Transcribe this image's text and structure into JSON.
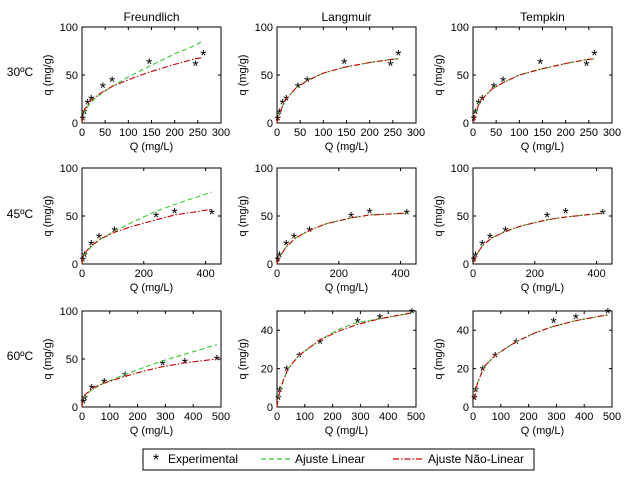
{
  "figure": {
    "row_labels": [
      "30ºC",
      "45ºC",
      "60ºC"
    ],
    "column_titles": [
      "Freundlich",
      "Langmuir",
      "Tempkin"
    ],
    "legend": {
      "experimental": "Experimental",
      "linear": "Ajuste Linear",
      "nonlinear": "Ajuste Não-Linear",
      "placement": "bottom-center"
    },
    "colors": {
      "experimental": "#000000",
      "linear": "#33cc33",
      "nonlinear": "#cc0000"
    }
  },
  "chart_data": [
    {
      "type": "line",
      "row": 0,
      "col": 0,
      "title": "Freundlich",
      "xlabel": "Q (mg/L)",
      "ylabel": "q (mg/g)",
      "xlim": [
        0,
        300
      ],
      "ylim": [
        0,
        100
      ],
      "xticks": [
        0,
        50,
        100,
        150,
        200,
        250,
        300
      ],
      "yticks": [
        0,
        50,
        100
      ],
      "series": [
        {
          "name": "Experimental",
          "style": "marker",
          "x": [
            2,
            5,
            12,
            20,
            45,
            65,
            145,
            245,
            262
          ],
          "y": [
            3,
            10,
            20,
            24,
            37,
            43,
            62,
            60,
            71
          ]
        },
        {
          "name": "Ajuste Linear",
          "style": "dashed",
          "x": [
            0,
            2,
            5,
            12,
            20,
            40,
            65,
            100,
            145,
            200,
            245,
            262
          ],
          "y": [
            0,
            7,
            11,
            17,
            22,
            30,
            38,
            48,
            59,
            72,
            81,
            86
          ]
        },
        {
          "name": "Ajuste Não-Linear",
          "style": "dashdot",
          "x": [
            0,
            2,
            5,
            12,
            20,
            40,
            65,
            100,
            145,
            200,
            245,
            262
          ],
          "y": [
            0,
            9,
            13,
            19,
            24,
            31,
            38,
            45,
            53,
            61,
            67,
            68
          ]
        }
      ]
    },
    {
      "type": "line",
      "row": 0,
      "col": 1,
      "title": "Langmuir",
      "xlabel": "Q (mg/L)",
      "ylabel": "q (mg/g)",
      "xlim": [
        0,
        300
      ],
      "ylim": [
        0,
        100
      ],
      "xticks": [
        0,
        50,
        100,
        150,
        200,
        250,
        300
      ],
      "yticks": [
        0,
        50,
        100
      ],
      "series": [
        {
          "name": "Experimental",
          "style": "marker",
          "x": [
            2,
            5,
            12,
            20,
            45,
            65,
            145,
            245,
            262
          ],
          "y": [
            3,
            10,
            20,
            24,
            37,
            43,
            62,
            60,
            71
          ]
        },
        {
          "name": "Ajuste Linear",
          "style": "dashed",
          "x": [
            0,
            2,
            5,
            12,
            20,
            40,
            65,
            100,
            145,
            200,
            245,
            262
          ],
          "y": [
            0,
            4,
            9,
            18,
            25,
            36,
            44,
            52,
            58,
            63,
            66,
            67
          ]
        },
        {
          "name": "Ajuste Não-Linear",
          "style": "dashdot",
          "x": [
            0,
            2,
            5,
            12,
            20,
            40,
            65,
            100,
            145,
            200,
            245,
            262
          ],
          "y": [
            0,
            4,
            9,
            18,
            25,
            36,
            44,
            52,
            58,
            63,
            66,
            67
          ]
        }
      ]
    },
    {
      "type": "line",
      "row": 0,
      "col": 2,
      "title": "Tempkin",
      "xlabel": "Q (mg/L)",
      "ylabel": "q (mg/g)",
      "xlim": [
        0,
        300
      ],
      "ylim": [
        0,
        100
      ],
      "xticks": [
        0,
        50,
        100,
        150,
        200,
        250,
        300
      ],
      "yticks": [
        0,
        50,
        100
      ],
      "series": [
        {
          "name": "Experimental",
          "style": "marker",
          "x": [
            2,
            5,
            12,
            20,
            45,
            65,
            145,
            245,
            262
          ],
          "y": [
            3,
            10,
            20,
            24,
            37,
            43,
            62,
            60,
            71
          ]
        },
        {
          "name": "Ajuste Linear",
          "style": "dashed",
          "x": [
            2,
            5,
            12,
            20,
            40,
            65,
            100,
            145,
            200,
            245,
            262
          ],
          "y": [
            2,
            9,
            19,
            25,
            35,
            42,
            50,
            56,
            62,
            66,
            67
          ]
        },
        {
          "name": "Ajuste Não-Linear",
          "style": "dashdot",
          "x": [
            2,
            5,
            12,
            20,
            40,
            65,
            100,
            145,
            200,
            245,
            262
          ],
          "y": [
            2,
            9,
            19,
            25,
            35,
            42,
            50,
            56,
            62,
            66,
            67
          ]
        }
      ]
    },
    {
      "type": "line",
      "row": 1,
      "col": 0,
      "title": "",
      "xlabel": "Q (mg/L)",
      "ylabel": "q (mg/g)",
      "xlim": [
        0,
        450
      ],
      "ylim": [
        0,
        100
      ],
      "xticks": [
        0,
        200,
        400
      ],
      "yticks": [
        0,
        50,
        100
      ],
      "series": [
        {
          "name": "Experimental",
          "style": "marker",
          "x": [
            3,
            8,
            30,
            55,
            105,
            240,
            300,
            420
          ],
          "y": [
            3,
            8,
            20,
            27,
            34,
            49,
            53,
            52
          ]
        },
        {
          "name": "Ajuste Linear",
          "style": "dashed",
          "x": [
            0,
            3,
            10,
            30,
            60,
            105,
            160,
            240,
            300,
            420
          ],
          "y": [
            0,
            6,
            11,
            18,
            26,
            34,
            43,
            55,
            62,
            75
          ]
        },
        {
          "name": "Ajuste Não-Linear",
          "style": "dashdot",
          "x": [
            0,
            3,
            10,
            30,
            60,
            105,
            160,
            240,
            300,
            420
          ],
          "y": [
            0,
            7,
            12,
            19,
            26,
            33,
            39,
            46,
            51,
            57
          ]
        }
      ]
    },
    {
      "type": "line",
      "row": 1,
      "col": 1,
      "title": "",
      "xlabel": "Q (mg/L)",
      "ylabel": "q (mg/g)",
      "xlim": [
        0,
        450
      ],
      "ylim": [
        0,
        100
      ],
      "xticks": [
        0,
        200,
        400
      ],
      "yticks": [
        0,
        50,
        100
      ],
      "series": [
        {
          "name": "Experimental",
          "style": "marker",
          "x": [
            3,
            8,
            30,
            55,
            105,
            240,
            300,
            420
          ],
          "y": [
            3,
            8,
            20,
            27,
            34,
            49,
            53,
            52
          ]
        },
        {
          "name": "Ajuste Linear",
          "style": "dashed",
          "x": [
            0,
            3,
            10,
            30,
            60,
            105,
            160,
            240,
            300,
            420
          ],
          "y": [
            0,
            3,
            8,
            18,
            27,
            35,
            42,
            48,
            51,
            53
          ]
        },
        {
          "name": "Ajuste Não-Linear",
          "style": "dashdot",
          "x": [
            0,
            3,
            10,
            30,
            60,
            105,
            160,
            240,
            300,
            420
          ],
          "y": [
            0,
            3,
            8,
            18,
            27,
            35,
            42,
            48,
            51,
            53
          ]
        }
      ]
    },
    {
      "type": "line",
      "row": 1,
      "col": 2,
      "title": "",
      "xlabel": "Q (mg/L)",
      "ylabel": "q (mg/g)",
      "xlim": [
        0,
        450
      ],
      "ylim": [
        0,
        100
      ],
      "xticks": [
        0,
        200,
        400
      ],
      "yticks": [
        0,
        50,
        100
      ],
      "series": [
        {
          "name": "Experimental",
          "style": "marker",
          "x": [
            3,
            8,
            30,
            55,
            105,
            240,
            300,
            420
          ],
          "y": [
            3,
            8,
            20,
            27,
            34,
            49,
            53,
            52
          ]
        },
        {
          "name": "Ajuste Linear",
          "style": "dashed",
          "x": [
            3,
            10,
            30,
            60,
            105,
            160,
            240,
            300,
            420
          ],
          "y": [
            2,
            9,
            19,
            27,
            34,
            40,
            46,
            49,
            53
          ]
        },
        {
          "name": "Ajuste Não-Linear",
          "style": "dashdot",
          "x": [
            3,
            10,
            30,
            60,
            105,
            160,
            240,
            300,
            420
          ],
          "y": [
            2,
            9,
            19,
            27,
            34,
            40,
            46,
            49,
            53
          ]
        }
      ]
    },
    {
      "type": "line",
      "row": 2,
      "col": 0,
      "title": "",
      "xlabel": "Q (mg/L)",
      "ylabel": "q (mg/g)",
      "xlim": [
        0,
        500
      ],
      "ylim": [
        0,
        100
      ],
      "xticks": [
        0,
        100,
        200,
        300,
        400,
        500
      ],
      "yticks": [
        0,
        50,
        100
      ],
      "series": [
        {
          "name": "Experimental",
          "style": "marker",
          "x": [
            5,
            10,
            35,
            80,
            155,
            290,
            370,
            485
          ],
          "y": [
            4,
            8,
            19,
            25,
            32,
            44,
            46,
            49
          ]
        },
        {
          "name": "Ajuste Linear",
          "style": "dashed",
          "x": [
            0,
            5,
            15,
            40,
            80,
            155,
            230,
            290,
            370,
            485
          ],
          "y": [
            0,
            9,
            13,
            19,
            25,
            34,
            42,
            48,
            55,
            65
          ]
        },
        {
          "name": "Ajuste Não-Linear",
          "style": "dashdot",
          "x": [
            0,
            5,
            15,
            40,
            80,
            155,
            230,
            290,
            370,
            485
          ],
          "y": [
            0,
            10,
            14,
            20,
            25,
            32,
            38,
            42,
            46,
            50
          ]
        }
      ]
    },
    {
      "type": "line",
      "row": 2,
      "col": 1,
      "title": "",
      "xlabel": "Q (mg/L)",
      "ylabel": "q (mg/g)",
      "xlim": [
        0,
        500
      ],
      "ylim": [
        0,
        50
      ],
      "xticks": [
        0,
        100,
        200,
        300,
        400,
        500
      ],
      "yticks": [
        0,
        20,
        40
      ],
      "series": [
        {
          "name": "Experimental",
          "style": "marker",
          "x": [
            5,
            10,
            35,
            80,
            155,
            290,
            370,
            485
          ],
          "y": [
            4,
            8,
            19,
            26,
            33,
            44,
            46,
            49
          ]
        },
        {
          "name": "Ajuste Linear",
          "style": "dashed",
          "x": [
            0,
            5,
            15,
            40,
            80,
            155,
            230,
            290,
            370,
            485
          ],
          "y": [
            0,
            5,
            11,
            20,
            27,
            35,
            41,
            44,
            46,
            49
          ]
        },
        {
          "name": "Ajuste Não-Linear",
          "style": "dashdot",
          "x": [
            0,
            5,
            15,
            40,
            80,
            155,
            230,
            290,
            370,
            485
          ],
          "y": [
            0,
            5,
            11,
            20,
            27,
            35,
            40,
            43,
            46,
            49
          ]
        }
      ]
    },
    {
      "type": "line",
      "row": 2,
      "col": 2,
      "title": "",
      "xlabel": "Q (mg/L)",
      "ylabel": "q (mg/g)",
      "xlim": [
        0,
        500
      ],
      "ylim": [
        0,
        50
      ],
      "xticks": [
        0,
        100,
        200,
        300,
        400,
        500
      ],
      "yticks": [
        0,
        20,
        40
      ],
      "series": [
        {
          "name": "Experimental",
          "style": "marker",
          "x": [
            5,
            10,
            35,
            80,
            155,
            290,
            370,
            485
          ],
          "y": [
            4,
            8,
            19,
            26,
            33,
            44,
            46,
            49
          ]
        },
        {
          "name": "Ajuste Linear",
          "style": "dashed",
          "x": [
            5,
            15,
            40,
            80,
            155,
            230,
            290,
            370,
            485
          ],
          "y": [
            4,
            12,
            21,
            27,
            34,
            39,
            42,
            45,
            48
          ]
        },
        {
          "name": "Ajuste Não-Linear",
          "style": "dashdot",
          "x": [
            5,
            15,
            40,
            80,
            155,
            230,
            290,
            370,
            485
          ],
          "y": [
            4,
            12,
            21,
            27,
            34,
            39,
            42,
            45,
            48
          ]
        }
      ]
    }
  ]
}
